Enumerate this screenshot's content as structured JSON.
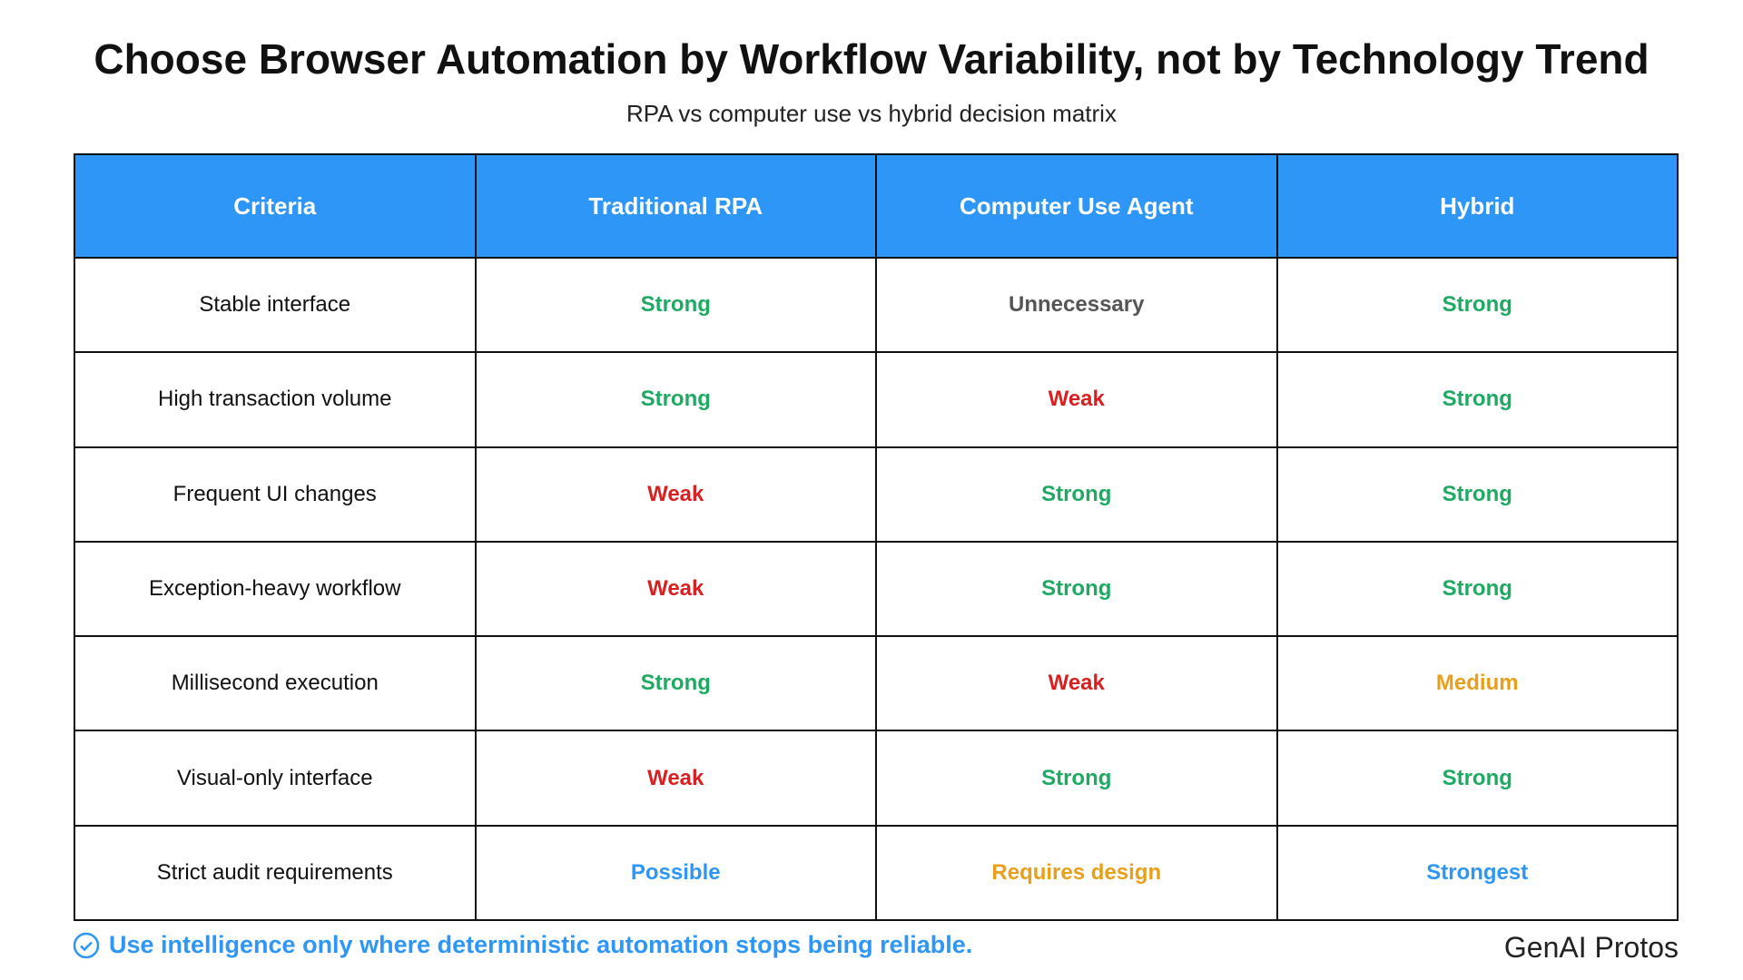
{
  "header": {
    "title": "Choose Browser Automation by Workflow Variability, not by Technology Trend",
    "subtitle": "RPA vs computer use vs hybrid decision matrix"
  },
  "table": {
    "header_color": "#2d96f7",
    "columns": [
      "Criteria",
      "Traditional RPA",
      "Computer Use Agent",
      "Hybrid"
    ],
    "rows": [
      {
        "criteria": "Stable interface",
        "cells": [
          {
            "text": "Strong",
            "color": "#1eaa63"
          },
          {
            "text": "Unnecessary",
            "color": "#555555"
          },
          {
            "text": "Strong",
            "color": "#1eaa63"
          }
        ]
      },
      {
        "criteria": "High transaction volume",
        "cells": [
          {
            "text": "Strong",
            "color": "#1eaa63"
          },
          {
            "text": "Weak",
            "color": "#d91f1f"
          },
          {
            "text": "Strong",
            "color": "#1eaa63"
          }
        ]
      },
      {
        "criteria": "Frequent UI changes",
        "cells": [
          {
            "text": "Weak",
            "color": "#d91f1f"
          },
          {
            "text": "Strong",
            "color": "#1eaa63"
          },
          {
            "text": "Strong",
            "color": "#1eaa63"
          }
        ]
      },
      {
        "criteria": "Exception-heavy workflow",
        "cells": [
          {
            "text": "Weak",
            "color": "#d91f1f"
          },
          {
            "text": "Strong",
            "color": "#1eaa63"
          },
          {
            "text": "Strong",
            "color": "#1eaa63"
          }
        ]
      },
      {
        "criteria": "Millisecond execution",
        "cells": [
          {
            "text": "Strong",
            "color": "#1eaa63"
          },
          {
            "text": "Weak",
            "color": "#d91f1f"
          },
          {
            "text": "Medium",
            "color": "#e8a01a"
          }
        ]
      },
      {
        "criteria": "Visual-only interface",
        "cells": [
          {
            "text": "Weak",
            "color": "#d91f1f"
          },
          {
            "text": "Strong",
            "color": "#1eaa63"
          },
          {
            "text": "Strong",
            "color": "#1eaa63"
          }
        ]
      },
      {
        "criteria": "Strict audit requirements",
        "cells": [
          {
            "text": "Possible",
            "color": "#2d96f7"
          },
          {
            "text": "Requires design",
            "color": "#e8a01a"
          },
          {
            "text": "Strongest",
            "color": "#2d96f7"
          }
        ]
      }
    ]
  },
  "footer": {
    "note": "Use intelligence only where deterministic automation stops being reliable.",
    "brand": "GenAI Protos"
  }
}
